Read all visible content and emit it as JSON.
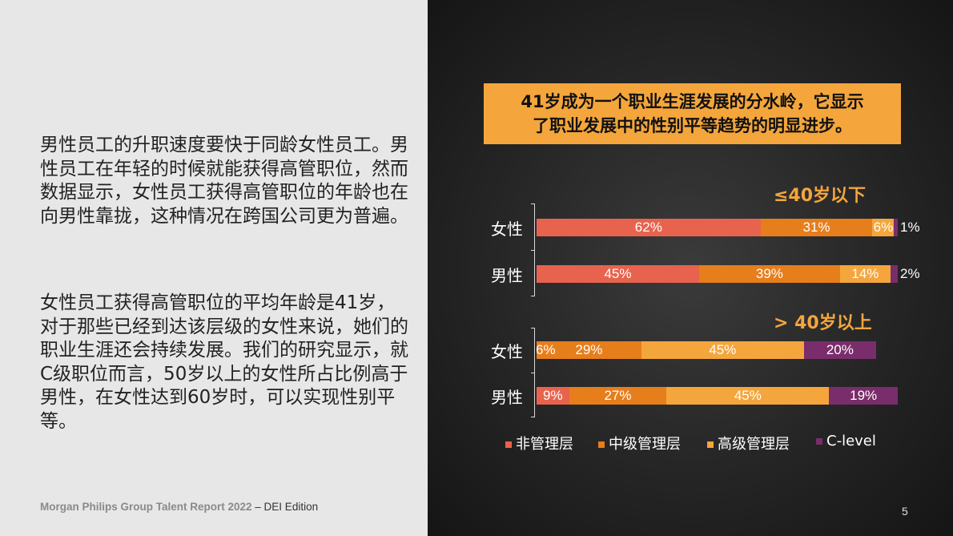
{
  "left": {
    "paragraph1": "男性员工的升职速度要快于同龄女性员工。男性员工在年轻的时候就能获得高管职位，然而数据显示，女性员工获得高管职位的年龄也在向男性靠拢，这种情况在跨国公司更为普遍。",
    "paragraph2": "女性员工获得高管职位的平均年龄是41岁，对于那些已经到达该层级的女性来说，她们的职业生涯还会持续发展。我们的研究显示，就C级职位而言，50岁以上的女性所占比例高于男性，在女性达到60岁时，可以实现性别平等。",
    "footer_bold": "Morgan Philips Group Talent Report 2022",
    "footer_rest": " – DEI Edition"
  },
  "page_number": "5",
  "headline": {
    "line1": "41岁成为一个职业生涯发展的分水岭，它显示",
    "line2": "了职业发展中的性别平等趋势的明显进步。"
  },
  "colors": {
    "left_bg": "#e7e7e7",
    "accent": "#f4a63c",
    "non_management": "#e8634d",
    "middle_management": "#e67e1c",
    "senior_management": "#f4a63c",
    "c_level": "#7a2d6b"
  },
  "chart_data": {
    "type": "bar",
    "orientation": "horizontal",
    "stacked": true,
    "xlim": [
      0,
      100
    ],
    "legend_position": "bottom",
    "legend": [
      "非管理层",
      "中级管理层",
      "高级管理层",
      "C-level"
    ],
    "groups": [
      {
        "title": "≤40岁以下",
        "categories": [
          "女性",
          "男性"
        ],
        "series": [
          {
            "name": "非管理层",
            "values": [
              62,
              45
            ],
            "labels": [
              "62%",
              "45%"
            ]
          },
          {
            "name": "中级管理层",
            "values": [
              31,
              39
            ],
            "labels": [
              "31%",
              "39%"
            ]
          },
          {
            "name": "高级管理层",
            "values": [
              6,
              14
            ],
            "labels": [
              "6%",
              "14%"
            ]
          },
          {
            "name": "C-level",
            "values": [
              1,
              2
            ],
            "labels": [
              "1%",
              "2%"
            ]
          }
        ]
      },
      {
        "title": "> 40岁以上",
        "categories": [
          "女性",
          "男性"
        ],
        "series": [
          {
            "name": "非管理层",
            "values": [
              0,
              9
            ],
            "labels": [
              "",
              "9%"
            ]
          },
          {
            "name": "中级管理层",
            "values": [
              29,
              27
            ],
            "labels": [
              "29%",
              "27%"
            ]
          },
          {
            "name": "高级管理层",
            "values": [
              45,
              45
            ],
            "labels": [
              "45%",
              "45%"
            ]
          },
          {
            "name": "C-level",
            "values": [
              20,
              19
            ],
            "labels": [
              "20%",
              "19%"
            ]
          }
        ],
        "notes": [
          "6%",
          ""
        ]
      }
    ]
  }
}
